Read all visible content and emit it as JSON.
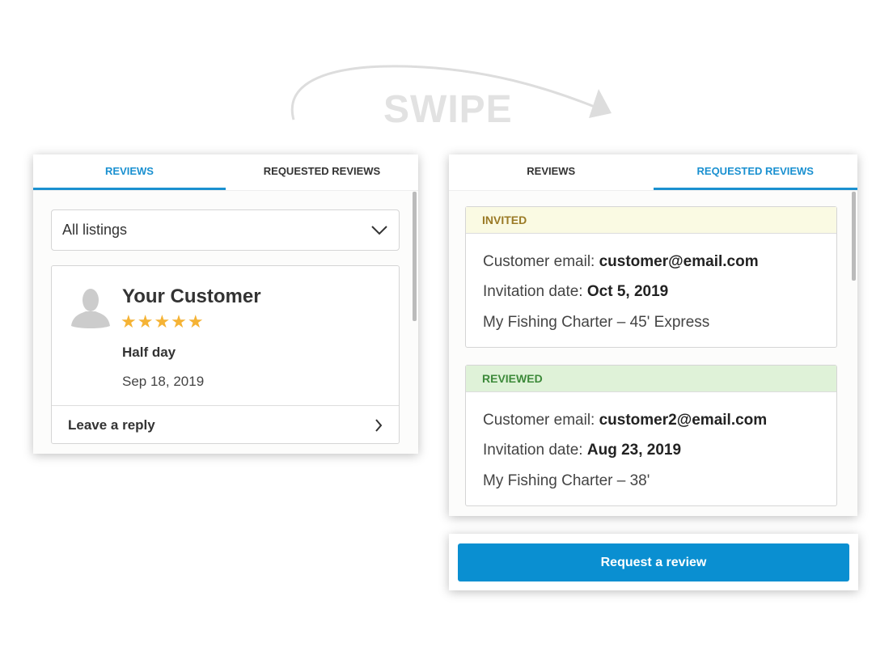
{
  "swipe_label": "SWIPE",
  "left": {
    "tabs": [
      "REVIEWS",
      "REQUESTED REVIEWS"
    ],
    "active_tab": 0,
    "filter": "All listings",
    "review": {
      "name": "Your Customer",
      "rating": 5,
      "stars": "★★★★★",
      "trip": "Half day",
      "date": "Sep 18, 2019",
      "reply_label": "Leave a reply"
    }
  },
  "right": {
    "tabs": [
      "REVIEWS",
      "REQUESTED REVIEWS"
    ],
    "active_tab": 1,
    "requests": [
      {
        "status": "INVITED",
        "status_bg": "#fafae3",
        "status_color": "#9a7a26",
        "email_label": "Customer email: ",
        "email": "customer@email.com",
        "date_label": "Invitation date: ",
        "date": "Oct 5, 2019",
        "listing": "My Fishing Charter – 45' Express"
      },
      {
        "status": "REVIEWED",
        "status_bg": "#dff2d8",
        "status_color": "#3d8a3a",
        "email_label": "Customer email: ",
        "email": "customer2@email.com",
        "date_label": "Invitation date: ",
        "date": "Aug 23, 2019",
        "listing": "My Fishing Charter – 38'"
      }
    ],
    "request_button": "Request a review"
  },
  "colors": {
    "accent": "#1a90d0",
    "star": "#f5b335"
  }
}
